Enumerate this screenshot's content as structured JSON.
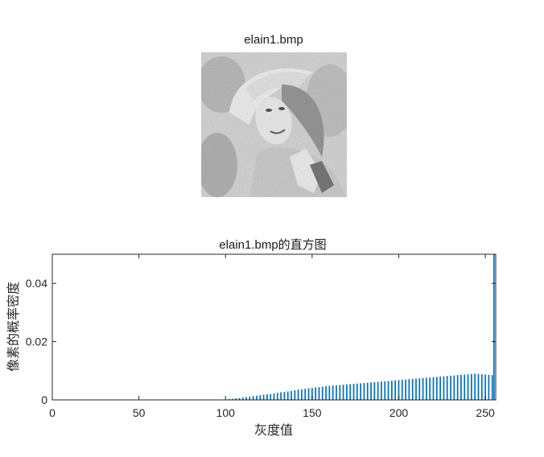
{
  "image_panel": {
    "title": "elain1.bmp"
  },
  "chart_data": {
    "type": "bar",
    "title": "elain1.bmp的直方图",
    "xlabel": "灰度值",
    "ylabel": "像素的概率密度",
    "xlim": [
      0,
      256
    ],
    "ylim": [
      0,
      0.05
    ],
    "x_ticks": [
      0,
      50,
      100,
      150,
      200,
      250
    ],
    "x_tick_labels": [
      "0",
      "50",
      "100",
      "150",
      "200",
      "250"
    ],
    "y_ticks": [
      0,
      0.02,
      0.04
    ],
    "y_tick_labels": [
      "0",
      "0.02",
      "0.04"
    ],
    "bar_color": "#0072bd",
    "grid": false,
    "x": [
      98,
      100,
      102,
      104,
      106,
      108,
      110,
      112,
      114,
      116,
      118,
      120,
      122,
      124,
      126,
      128,
      130,
      132,
      134,
      136,
      138,
      140,
      142,
      144,
      146,
      148,
      150,
      152,
      154,
      156,
      158,
      160,
      162,
      164,
      166,
      168,
      170,
      172,
      174,
      176,
      178,
      180,
      182,
      184,
      186,
      188,
      190,
      192,
      194,
      196,
      198,
      200,
      202,
      204,
      206,
      208,
      210,
      212,
      214,
      216,
      218,
      220,
      222,
      224,
      226,
      228,
      230,
      232,
      234,
      236,
      238,
      240,
      242,
      244,
      246,
      248,
      250,
      252,
      254,
      255
    ],
    "values": [
      0.0001,
      0.0002,
      0.0003,
      0.0004,
      0.0006,
      0.0006,
      0.0008,
      0.001,
      0.0011,
      0.0013,
      0.0014,
      0.0016,
      0.0018,
      0.0019,
      0.002,
      0.0022,
      0.0024,
      0.0026,
      0.0027,
      0.0029,
      0.0031,
      0.0033,
      0.0035,
      0.0036,
      0.0038,
      0.004,
      0.0041,
      0.0043,
      0.0044,
      0.0045,
      0.0047,
      0.0048,
      0.0049,
      0.005,
      0.0051,
      0.0052,
      0.0053,
      0.0054,
      0.0055,
      0.0056,
      0.0057,
      0.0058,
      0.0059,
      0.006,
      0.0061,
      0.0062,
      0.0063,
      0.0064,
      0.0065,
      0.0066,
      0.0067,
      0.0068,
      0.0069,
      0.007,
      0.0071,
      0.0072,
      0.0073,
      0.0074,
      0.0075,
      0.0076,
      0.0077,
      0.0078,
      0.0079,
      0.008,
      0.0081,
      0.0082,
      0.0083,
      0.0084,
      0.0085,
      0.0086,
      0.0087,
      0.0088,
      0.0089,
      0.009,
      0.0089,
      0.0088,
      0.0087,
      0.0086,
      0.0085,
      0.05
    ]
  }
}
